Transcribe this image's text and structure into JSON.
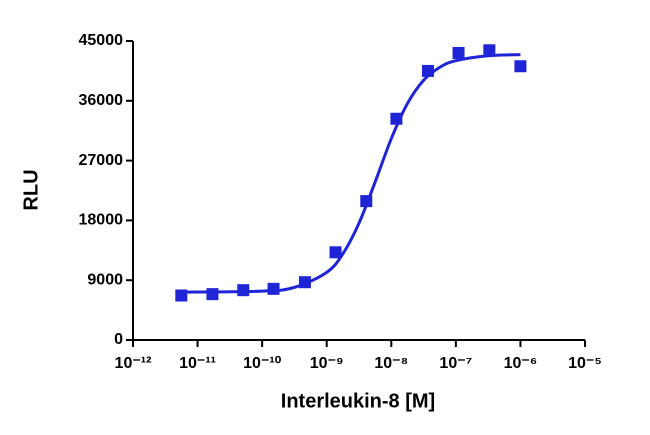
{
  "chart_data": {
    "type": "scatter",
    "x_label": "Interleukin-8 [M]",
    "y_label": "RLU",
    "xscale": "log",
    "xlim": [
      1e-12,
      1e-05
    ],
    "xticks": [
      {
        "value": 1e-12,
        "label": "10⁻¹²"
      },
      {
        "value": 1e-11,
        "label": "10⁻¹¹"
      },
      {
        "value": 1e-10,
        "label": "10⁻¹⁰"
      },
      {
        "value": 1e-09,
        "label": "10⁻⁹"
      },
      {
        "value": 1e-08,
        "label": "10⁻⁸"
      },
      {
        "value": 1e-07,
        "label": "10⁻⁷"
      },
      {
        "value": 1e-06,
        "label": "10⁻⁶"
      },
      {
        "value": 1e-05,
        "label": "10⁻⁵"
      }
    ],
    "ylim": [
      0,
      45000
    ],
    "yticks": [
      0,
      9000,
      18000,
      27000,
      36000,
      45000
    ],
    "axis_color": "#000000",
    "points": {
      "color": "#1f24d6",
      "x": [
        5.6e-12,
        1.7e-11,
        5.1e-11,
        1.5e-10,
        4.6e-10,
        1.37e-09,
        4.1e-09,
        1.2e-08,
        3.7e-08,
        1.1e-07,
        3.3e-07,
        1e-06
      ],
      "values": [
        6700,
        6900,
        7500,
        7700,
        8700,
        13200,
        20900,
        33300,
        40500,
        43200,
        43600,
        41200
      ]
    },
    "fit": {
      "color": "#1f24d6",
      "x": [
        5.6e-12,
        1e-10,
        3.16e-10,
        1e-09,
        1.78e-09,
        3.16e-09,
        5.62e-09,
        1e-08,
        1.78e-08,
        3.16e-08,
        5.62e-08,
        1e-07,
        3.16e-07,
        1e-06
      ],
      "values": [
        7200,
        7360,
        7920,
        10180,
        12980,
        17580,
        23770,
        30300,
        35600,
        39080,
        41030,
        42040,
        42780,
        42950
      ]
    }
  }
}
